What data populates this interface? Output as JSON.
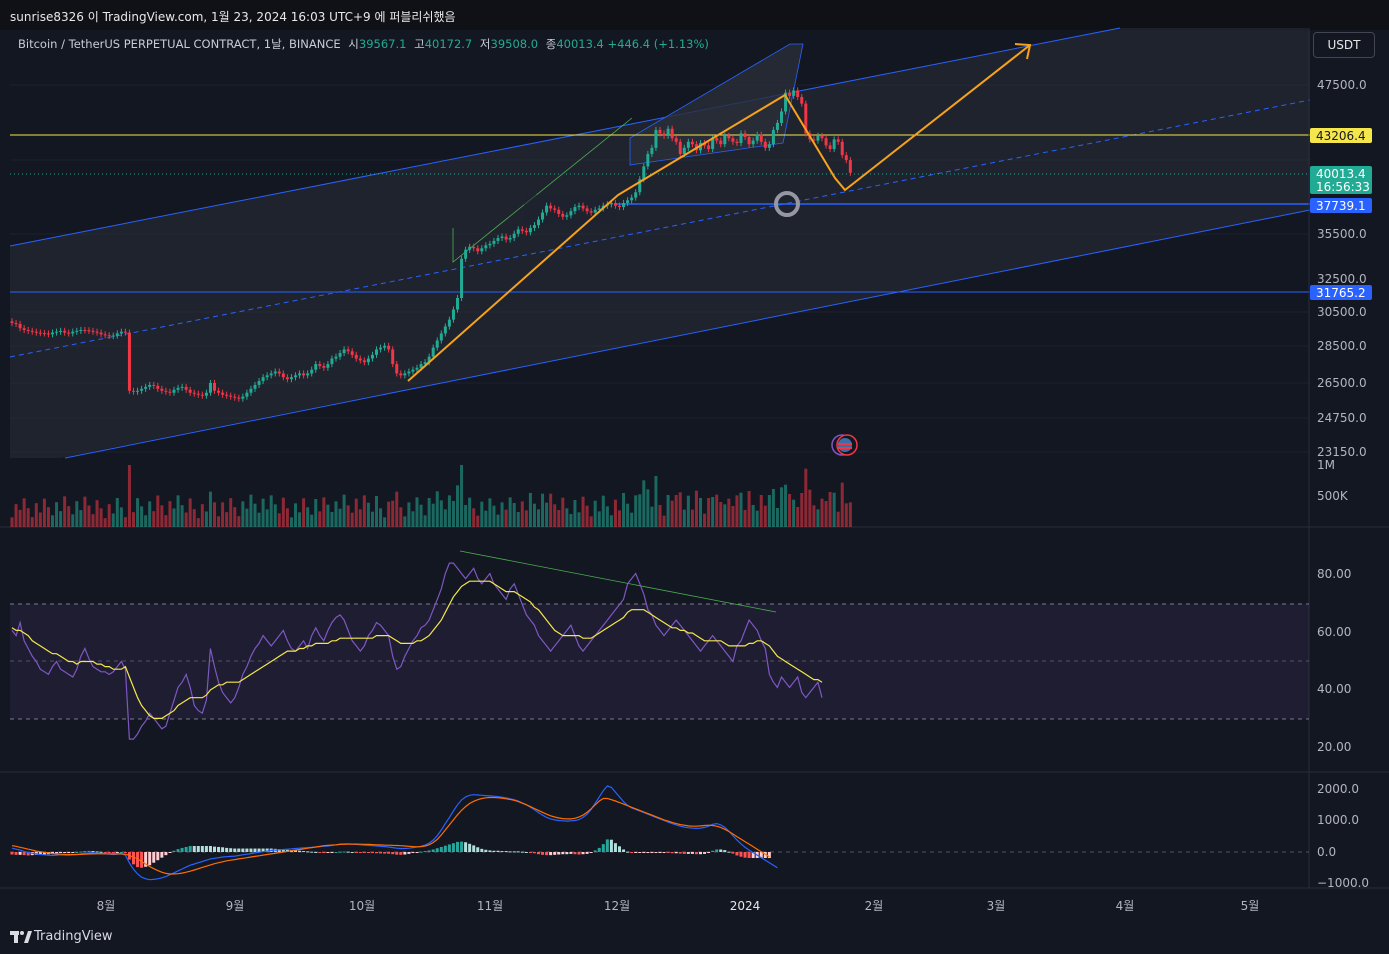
{
  "header": {
    "publisher_line": "sunrise8326 이 TradingView.com, 1월 23, 2024 16:03 UTC+9 에 퍼블리쉬했음"
  },
  "symbol": {
    "name": "Bitcoin / TetherUS PERPETUAL CONTRACT, 1날, BINANCE",
    "open_label": "시",
    "open": "39567.1",
    "high_label": "고",
    "high": "40172.7",
    "low_label": "저",
    "low": "39508.0",
    "close_label": "종",
    "close": "40013.4",
    "change": "+446.4 (+1.13%)"
  },
  "currency_button": "USDT",
  "footer": {
    "logo_text": "TradingView"
  },
  "colors": {
    "background": "#131722",
    "up": "#22ab94",
    "down": "#f23645",
    "channel": "#2962ff",
    "annotation": "#f7a21b",
    "resistance": "#f5e74b",
    "rsi": "#7e57c2",
    "rsi_ma": "#f5e74b",
    "macd": "#2962ff",
    "signal": "#ff6d00"
  },
  "chart_data": [
    {
      "type": "candlestick",
      "title": "Bitcoin / TetherUS PERPETUAL CONTRACT, 1날, BINANCE",
      "x_tick_labels": [
        "8월",
        "9월",
        "10월",
        "11월",
        "12월",
        "2024",
        "2월",
        "3월",
        "4월",
        "5월"
      ],
      "y_tick_labels": [
        "47500.0",
        "35500.0",
        "32500.0",
        "30500.0",
        "28500.0",
        "26500.0",
        "24750.0",
        "23150.0"
      ],
      "y_axis_scale": "log",
      "price_labels": [
        {
          "value": "43206.4",
          "role": "resistance"
        },
        {
          "value": "40013.4",
          "time": "16:56:33",
          "role": "last"
        },
        {
          "value": "37739.1",
          "role": "support"
        },
        {
          "value": "31765.2",
          "role": "support"
        }
      ],
      "horizontal_levels": [
        43206.4,
        37739.1,
        31765.2
      ],
      "closes": [
        29800,
        29750,
        29500,
        29400,
        29350,
        29300,
        29250,
        29220,
        29200,
        29150,
        29250,
        29300,
        29350,
        29250,
        29200,
        29300,
        29350,
        29400,
        29380,
        29350,
        29300,
        29250,
        29150,
        29100,
        29050,
        29080,
        29200,
        29300,
        29250,
        26100,
        26050,
        26100,
        26200,
        26300,
        26400,
        26350,
        26200,
        26100,
        26050,
        26000,
        26150,
        26250,
        26300,
        26150,
        26000,
        25950,
        25900,
        25850,
        26000,
        26500,
        26100,
        26000,
        25900,
        25850,
        25800,
        25750,
        25700,
        25800,
        26000,
        26200,
        26400,
        26600,
        26800,
        26900,
        27000,
        27100,
        27000,
        26800,
        26700,
        26800,
        26900,
        27000,
        26900,
        27000,
        27200,
        27500,
        27400,
        27300,
        27500,
        27800,
        27900,
        28100,
        28300,
        28200,
        28000,
        27800,
        27700,
        27600,
        27800,
        28000,
        28300,
        28400,
        28500,
        28300,
        27500,
        27000,
        26900,
        27000,
        27100,
        27200,
        27300,
        27500,
        27600,
        27900,
        28400,
        28800,
        29200,
        29600,
        30000,
        30600,
        31300,
        33800,
        34400,
        34600,
        34500,
        34300,
        34500,
        34700,
        34800,
        35000,
        35200,
        35300,
        35100,
        35200,
        35500,
        35800,
        35700,
        35600,
        35900,
        36100,
        36500,
        37000,
        37500,
        37300,
        37200,
        36900,
        36700,
        36800,
        37100,
        37400,
        37500,
        37300,
        37100,
        37000,
        37200,
        37300,
        37500,
        37600,
        37700,
        37500,
        37400,
        37700,
        37900,
        38100,
        38500,
        39500,
        40500,
        41500,
        42000,
        43500,
        43200,
        43000,
        43600,
        42800,
        42500,
        41500,
        42000,
        42500,
        42300,
        41800,
        42400,
        42200,
        41900,
        42800,
        42600,
        42300,
        43000,
        42800,
        42500,
        42400,
        43200,
        42900,
        42300,
        42600,
        43100,
        42500,
        42000,
        42300,
        43500,
        44100,
        45100,
        46800,
        46500,
        47000,
        46400,
        45800,
        43200,
        42700,
        42600,
        43000,
        42800,
        42200,
        41900,
        42700,
        42500,
        41400,
        41000,
        40000
      ]
    },
    {
      "type": "bar",
      "title": "Volume",
      "y_tick_labels": [
        "1M",
        "500K"
      ]
    },
    {
      "type": "line",
      "title": "RSI",
      "y_tick_labels": [
        "80.00",
        "60.00",
        "40.00",
        "20.00"
      ],
      "ylim": [
        10,
        95
      ],
      "bands": [
        70,
        50,
        30
      ],
      "series": [
        {
          "values": [
            62,
            60,
            65,
            58,
            55,
            52,
            50,
            47,
            46,
            45,
            48,
            50,
            47,
            46,
            45,
            44,
            47,
            52,
            55,
            51,
            48,
            47,
            46,
            46,
            45,
            46,
            48,
            50,
            47,
            20,
            20,
            22,
            25,
            27,
            30,
            28,
            26,
            24,
            25,
            30,
            35,
            40,
            42,
            45,
            40,
            33,
            31,
            30,
            35,
            55,
            48,
            42,
            38,
            36,
            34,
            36,
            40,
            45,
            48,
            52,
            55,
            57,
            60,
            58,
            56,
            58,
            60,
            62,
            58,
            55,
            54,
            56,
            58,
            55,
            60,
            63,
            60,
            58,
            62,
            65,
            67,
            68,
            66,
            62,
            58,
            56,
            54,
            56,
            60,
            62,
            65,
            64,
            62,
            60,
            52,
            47,
            48,
            52,
            55,
            58,
            60,
            63,
            64,
            66,
            70,
            74,
            78,
            84,
            88,
            88,
            86,
            84,
            82,
            84,
            86,
            82,
            80,
            82,
            84,
            80,
            78,
            76,
            74,
            78,
            80,
            76,
            72,
            68,
            66,
            64,
            60,
            58,
            56,
            54,
            56,
            58,
            60,
            62,
            64,
            60,
            56,
            54,
            56,
            58,
            60,
            62,
            64,
            66,
            68,
            70,
            72,
            74,
            80,
            82,
            84,
            80,
            76,
            70,
            68,
            64,
            62,
            60,
            62,
            64,
            66,
            64,
            62,
            60,
            58,
            56,
            54,
            56,
            58,
            60,
            58,
            56,
            54,
            52,
            50,
            56,
            58,
            62,
            66,
            64,
            62,
            58,
            55,
            45,
            42,
            40,
            44,
            42,
            40,
            42,
            44,
            38,
            36,
            38,
            40,
            42,
            36
          ]
        },
        {
          "values": [
            63,
            62,
            62,
            61,
            60,
            58,
            57,
            56,
            55,
            54,
            53,
            53,
            52,
            51,
            50,
            50,
            49,
            50,
            50,
            50,
            50,
            49,
            49,
            48,
            48,
            47,
            47,
            47,
            48,
            44,
            40,
            36,
            33,
            31,
            29,
            28,
            28,
            28,
            29,
            30,
            31,
            33,
            34,
            35,
            36,
            36,
            36,
            36,
            37,
            39,
            40,
            41,
            41,
            42,
            42,
            42,
            42,
            43,
            44,
            45,
            46,
            47,
            48,
            49,
            50,
            51,
            52,
            53,
            54,
            54,
            54,
            55,
            55,
            56,
            56,
            57,
            57,
            57,
            57,
            58,
            58,
            59,
            59,
            59,
            59,
            59,
            59,
            59,
            59,
            59,
            60,
            60,
            60,
            60,
            59,
            58,
            57,
            57,
            57,
            57,
            58,
            58,
            59,
            60,
            62,
            64,
            66,
            69,
            72,
            75,
            77,
            79,
            80,
            81,
            81,
            81,
            81,
            81,
            81,
            80,
            79,
            78,
            77,
            77,
            77,
            76,
            75,
            74,
            73,
            71,
            70,
            68,
            66,
            64,
            62,
            61,
            60,
            60,
            60,
            60,
            60,
            59,
            59,
            59,
            60,
            61,
            62,
            63,
            64,
            65,
            66,
            67,
            69,
            70,
            70,
            70,
            70,
            69,
            68,
            67,
            66,
            65,
            64,
            63,
            63,
            62,
            62,
            61,
            61,
            60,
            59,
            58,
            58,
            58,
            58,
            58,
            57,
            56,
            56,
            56,
            56,
            56,
            57,
            57,
            58,
            58,
            57,
            56,
            54,
            52,
            51,
            50,
            49,
            48,
            47,
            46,
            45,
            44,
            43,
            43,
            42
          ]
        }
      ]
    },
    {
      "type": "line",
      "title": "MACD",
      "y_tick_labels": [
        "2000.0",
        "1000.0",
        "0.0",
        "−1000.0"
      ],
      "ylim": [
        -1200,
        2300
      ],
      "series": [
        {
          "values": [
            120,
            90,
            60,
            20,
            -20,
            -40,
            -60,
            -80,
            -90,
            -100,
            -110,
            -100,
            -90,
            -95,
            -100,
            -90,
            -80,
            -60,
            -40,
            -30,
            -30,
            -40,
            -50,
            -60,
            -70,
            -80,
            -70,
            -60,
            -100,
            -350,
            -550,
            -700,
            -800,
            -850,
            -880,
            -870,
            -850,
            -820,
            -780,
            -720,
            -660,
            -600,
            -540,
            -480,
            -420,
            -380,
            -340,
            -300,
            -260,
            -220,
            -200,
            -180,
            -160,
            -150,
            -140,
            -130,
            -110,
            -90,
            -70,
            -50,
            -30,
            -10,
            10,
            30,
            50,
            60,
            70,
            80,
            90,
            100,
            110,
            120,
            130,
            140,
            150,
            160,
            170,
            180,
            190,
            210,
            230,
            250,
            260,
            260,
            250,
            240,
            230,
            220,
            210,
            200,
            190,
            180,
            170,
            160,
            140,
            120,
            110,
            110,
            120,
            140,
            160,
            180,
            220,
            280,
            380,
            520,
            700,
            900,
            1100,
            1300,
            1500,
            1650,
            1750,
            1800,
            1820,
            1810,
            1800,
            1790,
            1780,
            1770,
            1760,
            1740,
            1720,
            1690,
            1660,
            1620,
            1560,
            1500,
            1420,
            1340,
            1250,
            1170,
            1100,
            1050,
            1020,
            1000,
            990,
            980,
            990,
            1000,
            1030,
            1100,
            1200,
            1350,
            1550,
            1750,
            1950,
            2100,
            2050,
            1900,
            1750,
            1600,
            1480,
            1400,
            1350,
            1300,
            1250,
            1200,
            1150,
            1100,
            1050,
            1000,
            950,
            900,
            860,
            820,
            790,
            770,
            760,
            750,
            760,
            780,
            820,
            880,
            900,
            860,
            780,
            660,
            520,
            380,
            260,
            150,
            60,
            -20,
            -100,
            -180,
            -260,
            -340,
            -420,
            -500
          ]
        },
        {
          "values": [
            200,
            180,
            150,
            120,
            90,
            60,
            30,
            10,
            -10,
            -30,
            -50,
            -60,
            -70,
            -75,
            -80,
            -80,
            -80,
            -75,
            -70,
            -65,
            -60,
            -58,
            -56,
            -56,
            -58,
            -60,
            -60,
            -60,
            -70,
            -110,
            -160,
            -220,
            -300,
            -380,
            -460,
            -530,
            -590,
            -640,
            -680,
            -700,
            -700,
            -690,
            -670,
            -640,
            -610,
            -570,
            -530,
            -490,
            -450,
            -410,
            -370,
            -340,
            -310,
            -280,
            -260,
            -240,
            -220,
            -200,
            -180,
            -160,
            -140,
            -120,
            -100,
            -80,
            -60,
            -40,
            -20,
            0,
            20,
            40,
            60,
            80,
            100,
            120,
            140,
            160,
            180,
            200,
            210,
            220,
            230,
            240,
            245,
            250,
            250,
            250,
            248,
            245,
            240,
            235,
            230,
            225,
            220,
            215,
            210,
            205,
            200,
            190,
            180,
            170,
            165,
            170,
            190,
            230,
            300,
            400,
            540,
            700,
            860,
            1020,
            1180,
            1320,
            1440,
            1540,
            1610,
            1660,
            1700,
            1720,
            1730,
            1730,
            1720,
            1710,
            1690,
            1670,
            1640,
            1600,
            1550,
            1500,
            1440,
            1380,
            1320,
            1260,
            1200,
            1150,
            1110,
            1080,
            1060,
            1050,
            1050,
            1070,
            1110,
            1170,
            1260,
            1370,
            1500,
            1620,
            1700,
            1700,
            1660,
            1620,
            1570,
            1520,
            1470,
            1420,
            1370,
            1320,
            1270,
            1220,
            1170,
            1120,
            1070,
            1020,
            980,
            940,
            900,
            870,
            850,
            830,
            820,
            820,
            830,
            840,
            850,
            840,
            820,
            780,
            720,
            650,
            570,
            490,
            410,
            330,
            250,
            170,
            90,
            10,
            -70,
            -150
          ]
        }
      ]
    }
  ]
}
